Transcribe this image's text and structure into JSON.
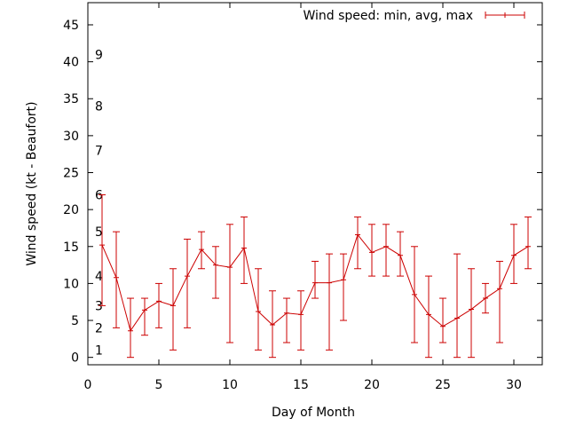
{
  "chart_data": {
    "type": "line",
    "title": "",
    "xlabel": "Day of Month",
    "ylabel": "Wind speed (kt - Beaufort)",
    "xlim": [
      0,
      32
    ],
    "ylim": [
      -1,
      48
    ],
    "xticks": [
      0,
      5,
      10,
      15,
      20,
      25,
      30
    ],
    "yticks": [
      0,
      5,
      10,
      15,
      20,
      25,
      30,
      35,
      40,
      45
    ],
    "grid": false,
    "legend_position": "top-right",
    "beaufort_labels": [
      {
        "label": "1",
        "y": 1
      },
      {
        "label": "2",
        "y": 4
      },
      {
        "label": "3",
        "y": 7
      },
      {
        "label": "4",
        "y": 11
      },
      {
        "label": "5",
        "y": 17
      },
      {
        "label": "6",
        "y": 22
      },
      {
        "label": "7",
        "y": 28
      },
      {
        "label": "8",
        "y": 34
      },
      {
        "label": "9",
        "y": 41
      }
    ],
    "series": [
      {
        "name": "Wind speed: min, avg, max",
        "color": "#cc0000",
        "x": [
          1,
          2,
          3,
          4,
          5,
          6,
          7,
          8,
          9,
          10,
          11,
          12,
          13,
          14,
          15,
          16,
          17,
          18,
          19,
          20,
          21,
          22,
          23,
          24,
          25,
          26,
          27,
          28,
          29,
          30,
          31
        ],
        "avg": [
          15.2,
          10.8,
          3.6,
          6.4,
          7.6,
          7.0,
          11.0,
          14.6,
          12.5,
          12.2,
          14.8,
          6.2,
          4.4,
          6.0,
          5.8,
          10.1,
          10.1,
          10.5,
          16.6,
          14.2,
          15.0,
          13.8,
          8.5,
          5.8,
          4.2,
          5.3,
          6.5,
          8.0,
          9.3,
          13.8,
          15.0
        ],
        "min": [
          7,
          4,
          0,
          3,
          4,
          1,
          4,
          12,
          8,
          2,
          10,
          1,
          0,
          2,
          1,
          8,
          1,
          5,
          12,
          11,
          11,
          11,
          2,
          0,
          2,
          0,
          0,
          6,
          2,
          10,
          12
        ],
        "max": [
          22,
          17,
          8,
          8,
          10,
          12,
          16,
          17,
          15,
          18,
          19,
          12,
          9,
          8,
          9,
          13,
          14,
          14,
          19,
          18,
          18,
          17,
          15,
          11,
          8,
          14,
          12,
          10,
          13,
          18,
          19
        ]
      }
    ]
  }
}
